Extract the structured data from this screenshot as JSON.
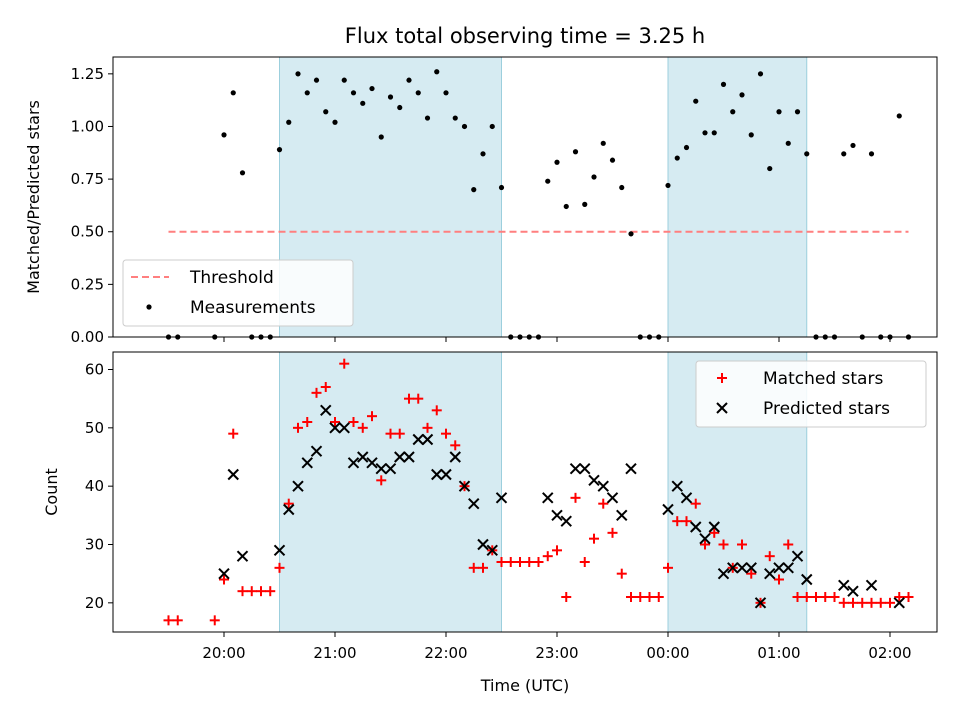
{
  "chart_data": [
    {
      "type": "scatter",
      "title": "Flux total observing time = 3.25 h",
      "xlabel": "",
      "ylabel": "Matched/Predicted stars",
      "ylim": [
        0,
        1.33
      ],
      "yticks": [
        "0.00",
        "0.25",
        "0.50",
        "0.75",
        "1.00",
        "1.25"
      ],
      "xticks": [],
      "shaded_bands": [
        [
          "20:30",
          "22:30"
        ],
        [
          "00:00",
          "01:15"
        ]
      ],
      "legend_position": "lower-left",
      "series": [
        {
          "name": "Threshold",
          "style": "dashed-line",
          "color": "#ff7f7f",
          "x": [
            "19:30",
            "02:10"
          ],
          "y": [
            0.5,
            0.5
          ]
        },
        {
          "name": "Measurements",
          "style": "dots",
          "color": "#000000",
          "x": [
            "19:30",
            "19:35",
            "19:55",
            "20:00",
            "20:05",
            "20:10",
            "20:15",
            "20:20",
            "20:25",
            "20:30",
            "20:35",
            "20:40",
            "20:45",
            "20:50",
            "20:55",
            "21:00",
            "21:05",
            "21:10",
            "21:15",
            "21:20",
            "21:25",
            "21:30",
            "21:35",
            "21:40",
            "21:45",
            "21:50",
            "21:55",
            "22:00",
            "22:05",
            "22:10",
            "22:15",
            "22:20",
            "22:25",
            "22:30",
            "22:35",
            "22:40",
            "22:45",
            "22:50",
            "22:55",
            "23:00",
            "23:05",
            "23:10",
            "23:15",
            "23:20",
            "23:25",
            "23:30",
            "23:35",
            "23:40",
            "23:45",
            "23:50",
            "23:55",
            "00:00",
            "00:05",
            "00:10",
            "00:15",
            "00:20",
            "00:25",
            "00:30",
            "00:35",
            "00:40",
            "00:45",
            "00:50",
            "00:55",
            "01:00",
            "01:05",
            "01:10",
            "01:15",
            "01:20",
            "01:25",
            "01:30",
            "01:35",
            "01:40",
            "01:45",
            "01:50",
            "01:55",
            "02:00",
            "02:05",
            "02:10"
          ],
          "y": [
            0,
            0,
            0,
            0.96,
            1.16,
            0.78,
            0,
            0,
            0,
            0.89,
            1.02,
            1.25,
            1.16,
            1.22,
            1.07,
            1.02,
            1.22,
            1.16,
            1.11,
            1.18,
            0.95,
            1.14,
            1.09,
            1.22,
            1.16,
            1.04,
            1.26,
            1.16,
            1.04,
            1.0,
            0.7,
            0.87,
            1.0,
            0.71,
            0,
            0,
            0,
            0,
            0.74,
            0.83,
            0.62,
            0.88,
            0.63,
            0.76,
            0.92,
            0.84,
            0.71,
            0.49,
            0,
            0,
            0,
            0.72,
            0.85,
            0.9,
            1.12,
            0.97,
            0.97,
            1.2,
            1.07,
            1.15,
            0.96,
            1.25,
            0.8,
            1.07,
            0.92,
            1.07,
            0.87,
            0,
            0,
            0,
            0.87,
            0.91,
            0,
            0.87,
            0,
            0,
            1.05,
            0
          ]
        }
      ]
    },
    {
      "type": "scatter",
      "title": "",
      "xlabel": "Time (UTC)",
      "ylabel": "Count",
      "ylim": [
        15,
        63
      ],
      "yticks": [
        "20",
        "30",
        "40",
        "50",
        "60"
      ],
      "xticks": [
        "20:00",
        "21:00",
        "22:00",
        "23:00",
        "00:00",
        "01:00",
        "02:00"
      ],
      "shaded_bands": [
        [
          "20:30",
          "22:30"
        ],
        [
          "00:00",
          "01:15"
        ]
      ],
      "legend_position": "upper-right",
      "series": [
        {
          "name": "Matched stars",
          "style": "plus",
          "color": "#ff0000",
          "x": [
            "19:30",
            "19:35",
            "19:55",
            "20:00",
            "20:05",
            "20:10",
            "20:15",
            "20:20",
            "20:25",
            "20:30",
            "20:35",
            "20:40",
            "20:45",
            "20:50",
            "20:55",
            "21:00",
            "21:05",
            "21:10",
            "21:15",
            "21:20",
            "21:25",
            "21:30",
            "21:35",
            "21:40",
            "21:45",
            "21:50",
            "21:55",
            "22:00",
            "22:05",
            "22:10",
            "22:15",
            "22:20",
            "22:25",
            "22:30",
            "22:35",
            "22:40",
            "22:45",
            "22:50",
            "22:55",
            "23:00",
            "23:05",
            "23:10",
            "23:15",
            "23:20",
            "23:25",
            "23:30",
            "23:35",
            "23:40",
            "23:45",
            "23:50",
            "23:55",
            "00:00",
            "00:05",
            "00:10",
            "00:15",
            "00:20",
            "00:25",
            "00:30",
            "00:35",
            "00:40",
            "00:45",
            "00:50",
            "00:55",
            "01:00",
            "01:05",
            "01:10",
            "01:15",
            "01:20",
            "01:25",
            "01:30",
            "01:35",
            "01:40",
            "01:45",
            "01:50",
            "01:55",
            "02:00",
            "02:05",
            "02:10"
          ],
          "y": [
            17,
            17,
            17,
            24,
            49,
            22,
            22,
            22,
            22,
            26,
            37,
            50,
            51,
            56,
            57,
            51,
            61,
            51,
            50,
            52,
            41,
            49,
            49,
            55,
            55,
            50,
            53,
            49,
            47,
            40,
            26,
            26,
            29,
            27,
            27,
            27,
            27,
            27,
            28,
            29,
            21,
            38,
            27,
            31,
            37,
            32,
            25,
            21,
            21,
            21,
            21,
            26,
            34,
            34,
            37,
            30,
            32,
            30,
            26,
            30,
            25,
            20,
            28,
            24,
            30,
            21,
            21,
            21,
            21,
            21,
            20,
            20,
            20,
            20,
            20,
            20,
            21,
            21
          ]
        },
        {
          "name": "Predicted stars",
          "style": "x",
          "color": "#000000",
          "x": [
            "20:00",
            "20:05",
            "20:10",
            "20:30",
            "20:35",
            "20:40",
            "20:45",
            "20:50",
            "20:55",
            "21:00",
            "21:05",
            "21:10",
            "21:15",
            "21:20",
            "21:25",
            "21:30",
            "21:35",
            "21:40",
            "21:45",
            "21:50",
            "21:55",
            "22:00",
            "22:05",
            "22:10",
            "22:15",
            "22:20",
            "22:25",
            "22:30",
            "22:55",
            "23:00",
            "23:05",
            "23:10",
            "23:15",
            "23:20",
            "23:25",
            "23:30",
            "23:35",
            "23:40",
            "00:00",
            "00:05",
            "00:10",
            "00:15",
            "00:20",
            "00:25",
            "00:30",
            "00:35",
            "00:40",
            "00:45",
            "00:50",
            "00:55",
            "01:00",
            "01:05",
            "01:10",
            "01:15",
            "01:35",
            "01:40",
            "01:50",
            "02:05"
          ],
          "y": [
            25,
            42,
            28,
            29,
            36,
            40,
            44,
            46,
            53,
            50,
            50,
            44,
            45,
            44,
            43,
            43,
            45,
            45,
            48,
            48,
            42,
            42,
            45,
            40,
            37,
            30,
            29,
            38,
            38,
            35,
            34,
            43,
            43,
            41,
            40,
            38,
            35,
            43,
            36,
            40,
            38,
            33,
            31,
            33,
            25,
            26,
            26,
            26,
            20,
            25,
            26,
            26,
            28,
            24,
            23,
            22,
            23,
            20
          ]
        }
      ]
    }
  ]
}
